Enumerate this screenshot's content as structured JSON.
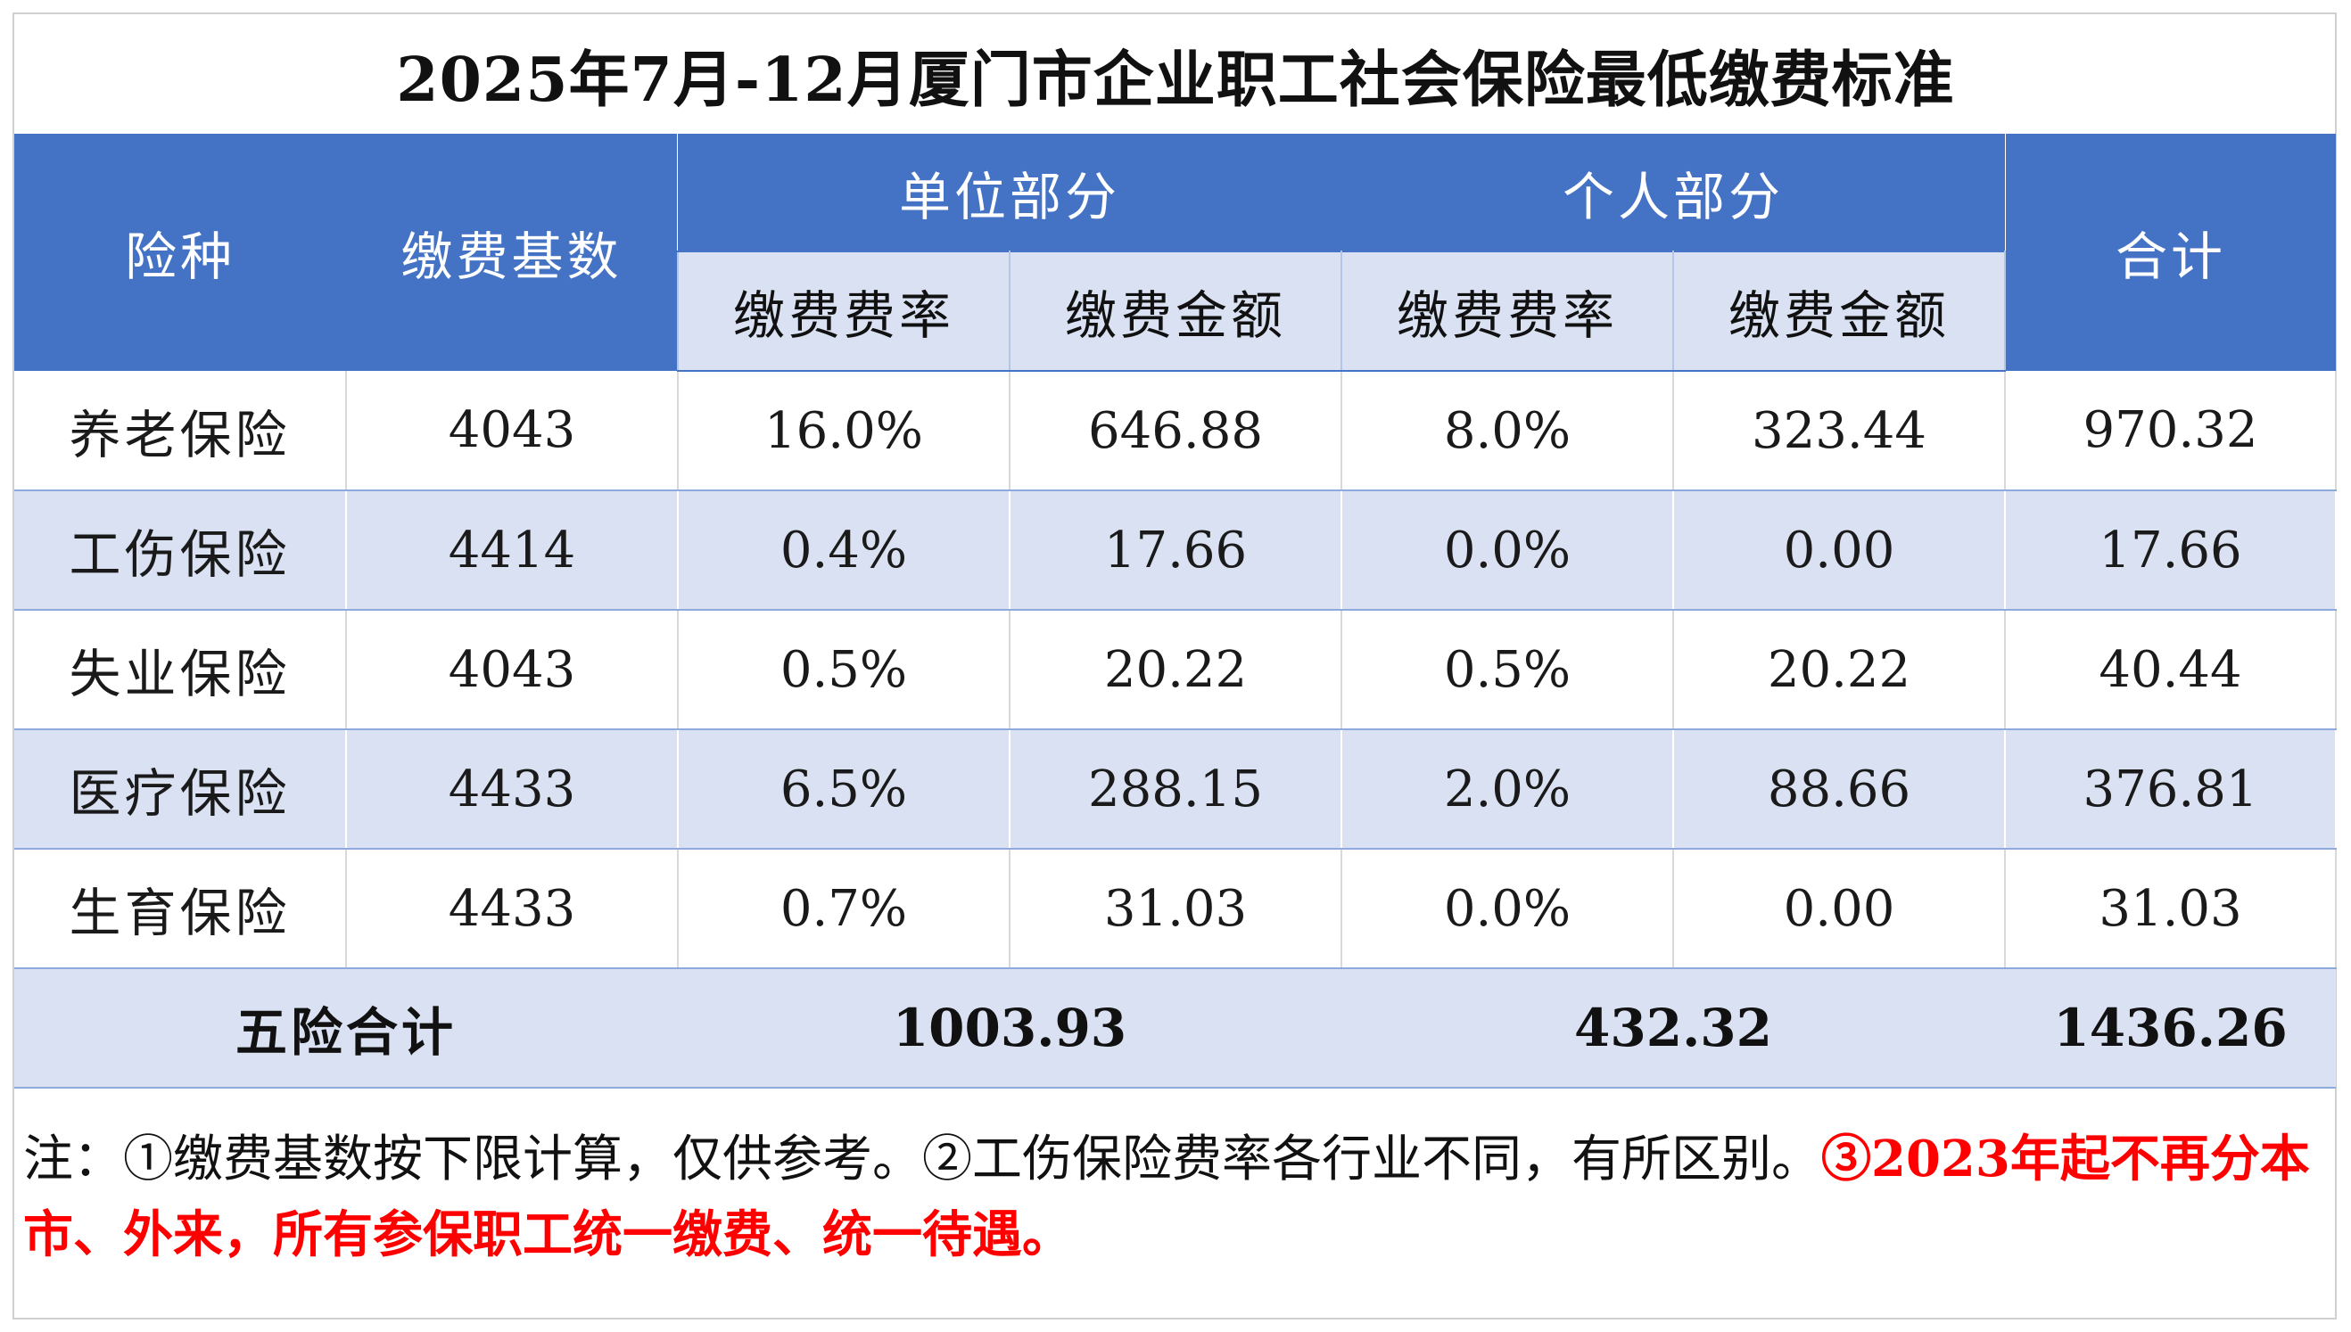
{
  "title": "2025年7月-12月厦门市企业职工社会保险最低缴费标准",
  "header": {
    "col_type": "险种",
    "col_base": "缴费基数",
    "group_unit": "单位部分",
    "group_personal": "个人部分",
    "col_total": "合计",
    "unit_rate": "缴费费率",
    "unit_amount": "缴费金额",
    "personal_rate": "缴费费率",
    "personal_amount": "缴费金额"
  },
  "rows": [
    {
      "type": "养老保险",
      "base": "4043",
      "unit_rate": "16.0%",
      "unit_amount": "646.88",
      "personal_rate": "8.0%",
      "personal_amount": "323.44",
      "total": "970.32"
    },
    {
      "type": "工伤保险",
      "base": "4414",
      "unit_rate": "0.4%",
      "unit_amount": "17.66",
      "personal_rate": "0.0%",
      "personal_amount": "0.00",
      "total": "17.66"
    },
    {
      "type": "失业保险",
      "base": "4043",
      "unit_rate": "0.5%",
      "unit_amount": "20.22",
      "personal_rate": "0.5%",
      "personal_amount": "20.22",
      "total": "40.44"
    },
    {
      "type": "医疗保险",
      "base": "4433",
      "unit_rate": "6.5%",
      "unit_amount": "288.15",
      "personal_rate": "2.0%",
      "personal_amount": "88.66",
      "total": "376.81"
    },
    {
      "type": "生育保险",
      "base": "4433",
      "unit_rate": "0.7%",
      "unit_amount": "31.03",
      "personal_rate": "0.0%",
      "personal_amount": "0.00",
      "total": "31.03"
    }
  ],
  "summary": {
    "label": "五险合计",
    "unit_total": "1003.93",
    "personal_total": "432.32",
    "grand_total": "1436.26"
  },
  "note": {
    "black": "注：①缴费基数按下限计算，仅供参考。②工伤保险费率各行业不同，有所区别。",
    "red": "③2023年起不再分本市、外来，所有参保职工统一缴费、统一待遇。"
  },
  "colors": {
    "header_blue": "#4472C4",
    "light_blue": "#D9E1F2",
    "note_red": "#FF0000"
  }
}
